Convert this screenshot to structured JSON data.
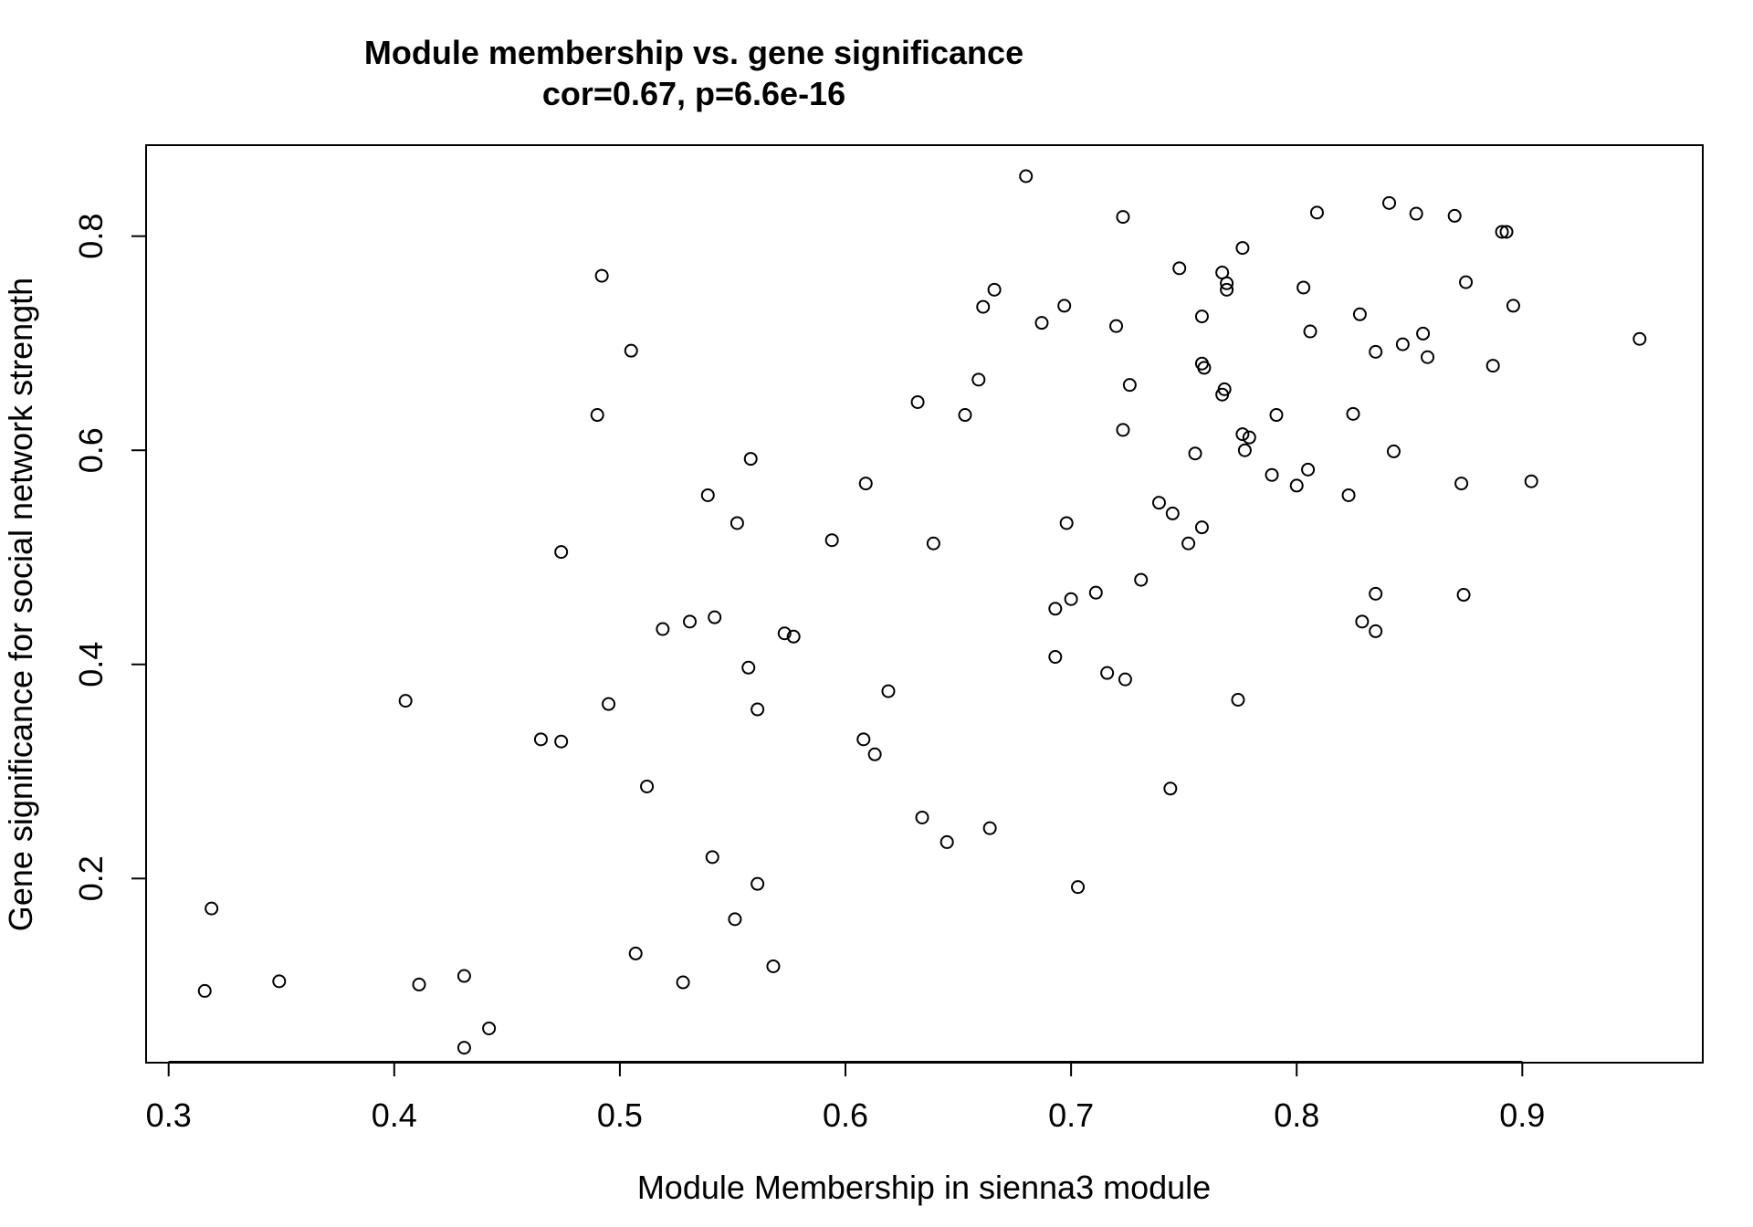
{
  "chart_data": {
    "type": "scatter",
    "title": "Module membership vs. gene significance",
    "subtitle": "cor=0.67, p=6.6e-16",
    "xlabel": "Module Membership in sienna3 module",
    "ylabel": "Gene significance for social network strength",
    "xlim": [
      0.29,
      0.98
    ],
    "ylim": [
      0.028,
      0.885
    ],
    "x_ticks": [
      0.3,
      0.4,
      0.5,
      0.6,
      0.7,
      0.8,
      0.9
    ],
    "x_tick_labels": [
      "0.3",
      "0.4",
      "0.5",
      "0.6",
      "0.7",
      "0.8",
      "0.9"
    ],
    "y_ticks": [
      0.2,
      0.4,
      0.6,
      0.8
    ],
    "y_tick_labels": [
      "0.2",
      "0.4",
      "0.6",
      "0.8"
    ],
    "grid": false,
    "marker": "open-circle",
    "marker_color": "#000000",
    "points": [
      [
        0.316,
        0.095
      ],
      [
        0.319,
        0.172
      ],
      [
        0.349,
        0.104
      ],
      [
        0.405,
        0.366
      ],
      [
        0.411,
        0.101
      ],
      [
        0.431,
        0.109
      ],
      [
        0.431,
        0.042
      ],
      [
        0.442,
        0.06
      ],
      [
        0.465,
        0.33
      ],
      [
        0.474,
        0.328
      ],
      [
        0.474,
        0.505
      ],
      [
        0.49,
        0.633
      ],
      [
        0.492,
        0.763
      ],
      [
        0.495,
        0.363
      ],
      [
        0.505,
        0.693
      ],
      [
        0.507,
        0.13
      ],
      [
        0.512,
        0.286
      ],
      [
        0.519,
        0.433
      ],
      [
        0.528,
        0.103
      ],
      [
        0.531,
        0.44
      ],
      [
        0.539,
        0.558
      ],
      [
        0.541,
        0.22
      ],
      [
        0.542,
        0.444
      ],
      [
        0.551,
        0.162
      ],
      [
        0.552,
        0.532
      ],
      [
        0.557,
        0.397
      ],
      [
        0.558,
        0.592
      ],
      [
        0.561,
        0.358
      ],
      [
        0.561,
        0.195
      ],
      [
        0.568,
        0.118
      ],
      [
        0.573,
        0.429
      ],
      [
        0.577,
        0.426
      ],
      [
        0.594,
        0.516
      ],
      [
        0.608,
        0.33
      ],
      [
        0.609,
        0.569
      ],
      [
        0.613,
        0.316
      ],
      [
        0.619,
        0.375
      ],
      [
        0.632,
        0.645
      ],
      [
        0.634,
        0.257
      ],
      [
        0.639,
        0.513
      ],
      [
        0.645,
        0.234
      ],
      [
        0.653,
        0.633
      ],
      [
        0.659,
        0.666
      ],
      [
        0.661,
        0.734
      ],
      [
        0.664,
        0.247
      ],
      [
        0.666,
        0.75
      ],
      [
        0.68,
        0.856
      ],
      [
        0.687,
        0.719
      ],
      [
        0.693,
        0.452
      ],
      [
        0.693,
        0.407
      ],
      [
        0.697,
        0.735
      ],
      [
        0.698,
        0.532
      ],
      [
        0.7,
        0.461
      ],
      [
        0.703,
        0.192
      ],
      [
        0.711,
        0.467
      ],
      [
        0.716,
        0.392
      ],
      [
        0.72,
        0.716
      ],
      [
        0.723,
        0.619
      ],
      [
        0.723,
        0.818
      ],
      [
        0.724,
        0.386
      ],
      [
        0.726,
        0.661
      ],
      [
        0.731,
        0.479
      ],
      [
        0.739,
        0.551
      ],
      [
        0.744,
        0.284
      ],
      [
        0.745,
        0.541
      ],
      [
        0.748,
        0.77
      ],
      [
        0.752,
        0.513
      ],
      [
        0.755,
        0.597
      ],
      [
        0.758,
        0.681
      ],
      [
        0.758,
        0.528
      ],
      [
        0.758,
        0.725
      ],
      [
        0.759,
        0.677
      ],
      [
        0.767,
        0.766
      ],
      [
        0.767,
        0.652
      ],
      [
        0.768,
        0.657
      ],
      [
        0.769,
        0.756
      ],
      [
        0.769,
        0.75
      ],
      [
        0.774,
        0.367
      ],
      [
        0.776,
        0.789
      ],
      [
        0.776,
        0.615
      ],
      [
        0.777,
        0.6
      ],
      [
        0.779,
        0.612
      ],
      [
        0.789,
        0.577
      ],
      [
        0.791,
        0.633
      ],
      [
        0.8,
        0.567
      ],
      [
        0.803,
        0.752
      ],
      [
        0.805,
        0.582
      ],
      [
        0.806,
        0.711
      ],
      [
        0.809,
        0.822
      ],
      [
        0.823,
        0.558
      ],
      [
        0.825,
        0.634
      ],
      [
        0.828,
        0.727
      ],
      [
        0.829,
        0.44
      ],
      [
        0.835,
        0.692
      ],
      [
        0.835,
        0.466
      ],
      [
        0.835,
        0.431
      ],
      [
        0.841,
        0.831
      ],
      [
        0.843,
        0.599
      ],
      [
        0.847,
        0.699
      ],
      [
        0.853,
        0.821
      ],
      [
        0.856,
        0.709
      ],
      [
        0.858,
        0.687
      ],
      [
        0.87,
        0.819
      ],
      [
        0.873,
        0.569
      ],
      [
        0.874,
        0.465
      ],
      [
        0.875,
        0.757
      ],
      [
        0.887,
        0.679
      ],
      [
        0.891,
        0.804
      ],
      [
        0.893,
        0.804
      ],
      [
        0.896,
        0.735
      ],
      [
        0.904,
        0.571
      ],
      [
        0.952,
        0.704
      ]
    ]
  }
}
